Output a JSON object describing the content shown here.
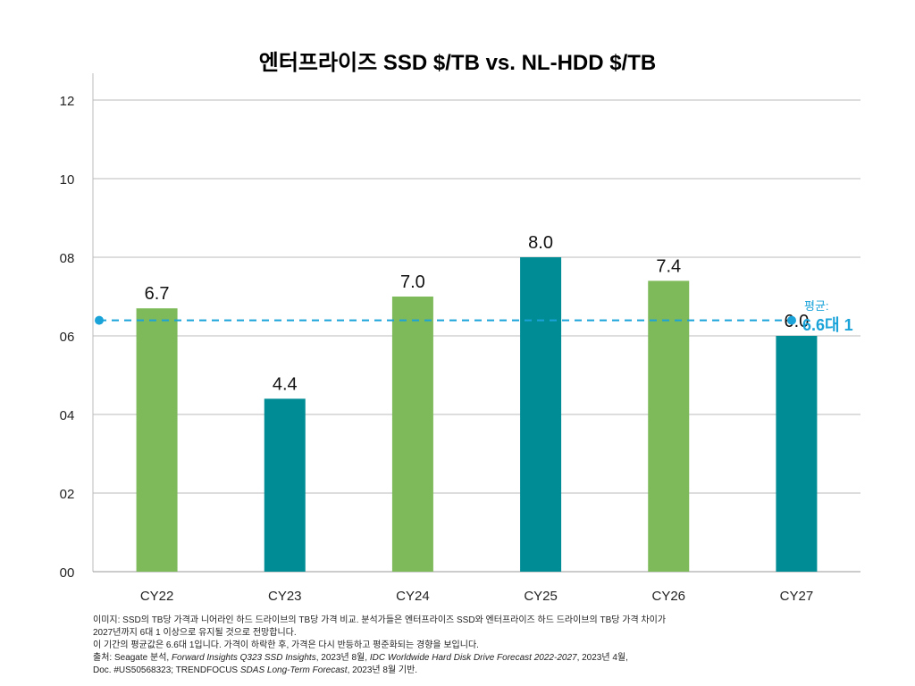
{
  "chart_data": {
    "type": "bar",
    "title": "엔터프라이즈 SSD $/TB vs. NL-HDD $/TB",
    "categories": [
      "CY22",
      "CY23",
      "CY24",
      "CY25",
      "CY26",
      "CY27"
    ],
    "values": [
      6.7,
      4.4,
      7.0,
      8.0,
      7.4,
      6.0
    ],
    "data_labels": [
      "6.7",
      "4.4",
      "7.0",
      "8.0",
      "7.4",
      "6.0"
    ],
    "bar_colors": [
      "#7fba5a",
      "#008c95",
      "#7fba5a",
      "#008c95",
      "#7fba5a",
      "#008c95"
    ],
    "ylim": [
      0,
      12
    ],
    "yticks": [
      0,
      2,
      4,
      6,
      8,
      10,
      12
    ],
    "ytick_labels": [
      "00",
      "02",
      "04",
      "06",
      "08",
      "10",
      "12"
    ],
    "grid": true,
    "average": {
      "value": 6.6,
      "label_line1": "평균:",
      "label_line2": "6.6대 1",
      "color": "#1aa3d9"
    }
  },
  "notes": [
    "이미지: SSD의 TB당 가격과 니어라인 하드 드라이브의 TB당 가격 비교. 분석가들은 엔터프라이즈 SSD와 엔터프라이즈 하드 드라이브의 TB당 가격 차이가",
    "2027년까지 6대 1 이상으로 유지될 것으로 전망합니다.",
    "이 기간의 평균값은 6.6대 1입니다. 가격이 하락한 후, 가격은 다시 반등하고 평준화되는 경향을 보입니다."
  ],
  "source": {
    "p1": "출처: Seagate 분석, ",
    "i1": "Forward Insights Q323 SSD Insights",
    "p2": ", 2023년 8월, ",
    "i2": "IDC Worldwide Hard Disk Drive Forecast 2022-2027",
    "p3": ", 2023년 4월,",
    "p4": "Doc. #US50568323; TRENDFOCUS ",
    "i3": "SDAS Long-Term Forecast",
    "p5": ", 2023년 8월 기반."
  }
}
